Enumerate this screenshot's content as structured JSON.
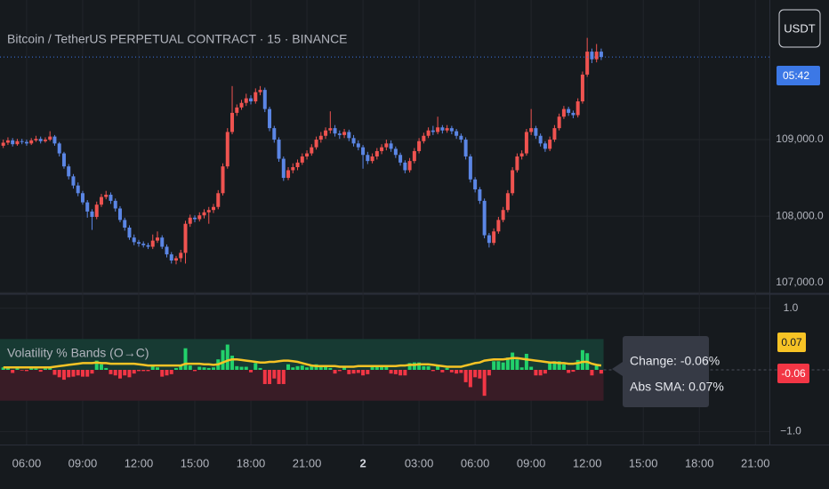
{
  "ui": {
    "currency_button": "USDT"
  },
  "chart_data": [
    {
      "type": "candlestick",
      "title": "Bitcoin / TetherUS PERPETUAL CONTRACT · 15 · BINANCE",
      "open": [
        108920,
        108960,
        108990,
        108940,
        108980,
        108970,
        108950,
        108990,
        109010,
        108980,
        109000,
        109040,
        108950,
        108820,
        108650,
        108520,
        108400,
        108300,
        108180,
        108060,
        107990,
        108150,
        108250,
        108280,
        108200,
        108100,
        107950,
        107850,
        107720,
        107660,
        107640,
        107620,
        107600,
        107680,
        107720,
        107600,
        107500,
        107420,
        107450,
        107520,
        107900,
        107980,
        107960,
        108010,
        108050,
        108080,
        108120,
        108300,
        108650,
        109100,
        109350,
        109420,
        109480,
        109540,
        109500,
        109620,
        109650,
        109400,
        109150,
        109000,
        108750,
        108500,
        108600,
        108640,
        108700,
        108780,
        108820,
        108900,
        109000,
        109050,
        109120,
        109150,
        109080,
        109060,
        109100,
        109020,
        108950,
        108900,
        108800,
        108720,
        108780,
        108850,
        108900,
        108950,
        108880,
        108800,
        108700,
        108600,
        108720,
        108850,
        108980,
        109050,
        109120,
        109100,
        109160,
        109120,
        109150,
        109110,
        109050,
        109000,
        108780,
        108480,
        108350,
        108200,
        107750,
        107650,
        107800,
        107950,
        108080,
        108300,
        108600,
        108780,
        108820,
        109100,
        109150,
        109050,
        108950,
        108880,
        109000,
        109150,
        109300,
        109400,
        109350,
        109320,
        109500,
        109850,
        110150,
        110050,
        110150
      ],
      "high": [
        109000,
        109030,
        109020,
        109010,
        109010,
        109000,
        109020,
        109050,
        109040,
        109030,
        109110,
        109060,
        108970,
        108840,
        108680,
        108550,
        108440,
        108330,
        108210,
        108090,
        108190,
        108290,
        108330,
        108310,
        108230,
        108130,
        107980,
        107880,
        107760,
        107690,
        107670,
        107650,
        107760,
        107800,
        107750,
        107630,
        107530,
        107480,
        107560,
        107940,
        108020,
        108010,
        108050,
        108090,
        108120,
        108160,
        108340,
        108690,
        109150,
        109700,
        109460,
        109520,
        109600,
        109580,
        109670,
        109700,
        109680,
        109430,
        109180,
        109030,
        108780,
        108640,
        108690,
        108740,
        108820,
        108860,
        108940,
        109040,
        109100,
        109160,
        109370,
        109190,
        109120,
        109140,
        109130,
        109060,
        108990,
        108930,
        108840,
        108820,
        108890,
        108940,
        109000,
        108990,
        108910,
        108830,
        108730,
        108760,
        108890,
        109020,
        109090,
        109160,
        109180,
        109300,
        109190,
        109190,
        109180,
        109140,
        109080,
        109030,
        108810,
        108510,
        108380,
        108230,
        107780,
        107840,
        107990,
        108120,
        108340,
        108640,
        108820,
        108860,
        109140,
        109400,
        109180,
        109080,
        108980,
        109040,
        109190,
        109340,
        109440,
        109430,
        109380,
        109540,
        109890,
        110330,
        110190,
        110250,
        110190
      ],
      "low": [
        108890,
        108930,
        108910,
        108920,
        108940,
        108920,
        108930,
        108970,
        108950,
        108960,
        108980,
        108920,
        108780,
        108620,
        108480,
        108360,
        108260,
        108150,
        107980,
        107820,
        107960,
        108120,
        108220,
        108160,
        108060,
        107920,
        107810,
        107690,
        107620,
        107600,
        107590,
        107570,
        107570,
        107650,
        107570,
        107460,
        107380,
        107370,
        107400,
        107380,
        107860,
        107920,
        107930,
        107970,
        107900,
        108040,
        108090,
        108270,
        108620,
        109070,
        109310,
        109390,
        109440,
        109460,
        109470,
        109580,
        109360,
        109110,
        108960,
        108710,
        108460,
        108470,
        108560,
        108600,
        108670,
        108740,
        108790,
        108870,
        108960,
        109010,
        109080,
        109040,
        109010,
        109020,
        108980,
        108910,
        108860,
        108620,
        108680,
        108690,
        108740,
        108810,
        108860,
        108840,
        108760,
        108660,
        108560,
        108570,
        108690,
        108820,
        108950,
        109020,
        109060,
        109070,
        109080,
        109090,
        109070,
        109010,
        108960,
        108740,
        108440,
        108310,
        108160,
        107710,
        107590,
        107620,
        107770,
        107920,
        108050,
        108270,
        108570,
        108740,
        108790,
        109060,
        109010,
        108910,
        108840,
        108850,
        108970,
        109120,
        109270,
        109310,
        109280,
        109290,
        109470,
        109820,
        110000,
        110010,
        110040
      ],
      "close": [
        108960,
        108990,
        108940,
        108980,
        108970,
        108950,
        108990,
        109010,
        108980,
        109000,
        109040,
        108950,
        108820,
        108650,
        108520,
        108400,
        108300,
        108180,
        108060,
        107990,
        108150,
        108250,
        108280,
        108200,
        108100,
        107950,
        107850,
        107720,
        107660,
        107640,
        107620,
        107600,
        107680,
        107720,
        107600,
        107500,
        107420,
        107450,
        107520,
        107900,
        107980,
        107960,
        108010,
        108050,
        108080,
        108120,
        108300,
        108650,
        109100,
        109350,
        109420,
        109480,
        109540,
        109500,
        109620,
        109650,
        109400,
        109150,
        109000,
        108750,
        108500,
        108600,
        108640,
        108700,
        108780,
        108820,
        108900,
        109000,
        109050,
        109120,
        109150,
        109080,
        109060,
        109100,
        109020,
        108950,
        108900,
        108800,
        108720,
        108780,
        108850,
        108900,
        108950,
        108880,
        108800,
        108700,
        108600,
        108720,
        108850,
        108980,
        109050,
        109120,
        109100,
        109160,
        109120,
        109150,
        109110,
        109050,
        109000,
        108780,
        108480,
        108350,
        108200,
        107750,
        107650,
        107800,
        107950,
        108080,
        108300,
        108600,
        108780,
        108820,
        109100,
        109150,
        109050,
        108950,
        108880,
        109000,
        109150,
        109300,
        109400,
        109350,
        109320,
        109500,
        109850,
        110150,
        110050,
        110150,
        110080
      ],
      "colors": {
        "up": "#ef5350",
        "down": "#5b86e5"
      },
      "xlim": [
        -0.7,
        164
      ],
      "xticks": [
        {
          "value": 5,
          "label": "06:00"
        },
        {
          "value": 17,
          "label": "09:00"
        },
        {
          "value": 29,
          "label": "12:00"
        },
        {
          "value": 41,
          "label": "15:00"
        },
        {
          "value": 53,
          "label": "18:00"
        },
        {
          "value": 65,
          "label": "21:00"
        },
        {
          "value": 77,
          "label": "2"
        },
        {
          "value": 89,
          "label": "03:00"
        },
        {
          "value": 101,
          "label": "06:00"
        },
        {
          "value": 113,
          "label": "09:00"
        },
        {
          "value": 125,
          "label": "12:00"
        },
        {
          "value": 137,
          "label": "15:00"
        },
        {
          "value": 149,
          "label": "18:00"
        },
        {
          "value": 161,
          "label": "21:00"
        }
      ],
      "ylim": [
        106990,
        110825
      ],
      "yticks": [
        {
          "value": 107000,
          "label": "107,000.0"
        },
        {
          "value": 108000,
          "label": "108,000.0"
        },
        {
          "value": 109000,
          "label": "109,000.0"
        }
      ],
      "grid": true,
      "last_price": 110080,
      "countdown": "05:42"
    },
    {
      "type": "bar",
      "title": "Volatility % Bands (O→C)",
      "values": [
        0.04,
        0.03,
        -0.05,
        0.04,
        -0.01,
        -0.02,
        0.04,
        0.02,
        -0.03,
        0.02,
        0.04,
        -0.08,
        -0.12,
        -0.16,
        -0.12,
        -0.11,
        -0.09,
        -0.11,
        -0.11,
        -0.06,
        0.15,
        0.09,
        0.03,
        -0.07,
        -0.09,
        -0.14,
        -0.09,
        -0.12,
        -0.06,
        -0.02,
        -0.02,
        -0.02,
        0.07,
        0.04,
        -0.11,
        -0.09,
        -0.07,
        0.03,
        0.07,
        0.35,
        0.07,
        -0.02,
        0.05,
        0.04,
        0.03,
        0.04,
        0.17,
        0.32,
        0.41,
        0.23,
        0.06,
        0.05,
        0.05,
        -0.04,
        0.11,
        0.03,
        -0.23,
        -0.23,
        -0.14,
        -0.23,
        -0.23,
        0.09,
        0.04,
        0.06,
        0.07,
        0.04,
        0.07,
        0.09,
        0.05,
        0.06,
        0.03,
        -0.06,
        -0.02,
        0.04,
        -0.07,
        -0.06,
        -0.05,
        -0.09,
        -0.07,
        0.06,
        0.06,
        0.05,
        0.05,
        -0.06,
        -0.07,
        -0.09,
        -0.09,
        0.11,
        0.12,
        0.12,
        0.06,
        0.06,
        -0.02,
        0.06,
        -0.04,
        0.03,
        -0.04,
        -0.06,
        -0.05,
        -0.2,
        -0.28,
        -0.12,
        -0.14,
        -0.42,
        -0.09,
        0.14,
        0.14,
        0.12,
        0.2,
        0.28,
        0.17,
        0.04,
        0.26,
        0.05,
        -0.09,
        -0.09,
        -0.06,
        0.11,
        0.14,
        0.14,
        0.09,
        -0.05,
        -0.03,
        0.16,
        0.32,
        0.27,
        -0.09,
        0.09,
        -0.06
      ],
      "colors": {
        "positive": "#22d16b",
        "negative": "#f23645"
      },
      "sma": {
        "color": "#f7c325",
        "values": [
          0.04,
          0.04,
          0.04,
          0.04,
          0.04,
          0.04,
          0.04,
          0.04,
          0.04,
          0.04,
          0.04,
          0.05,
          0.06,
          0.07,
          0.08,
          0.09,
          0.1,
          0.11,
          0.11,
          0.11,
          0.12,
          0.11,
          0.11,
          0.1,
          0.1,
          0.1,
          0.1,
          0.1,
          0.1,
          0.09,
          0.08,
          0.07,
          0.07,
          0.07,
          0.07,
          0.07,
          0.07,
          0.07,
          0.07,
          0.1,
          0.1,
          0.1,
          0.1,
          0.09,
          0.09,
          0.08,
          0.09,
          0.12,
          0.15,
          0.17,
          0.17,
          0.16,
          0.15,
          0.14,
          0.13,
          0.12,
          0.12,
          0.13,
          0.13,
          0.14,
          0.15,
          0.15,
          0.14,
          0.13,
          0.11,
          0.09,
          0.07,
          0.06,
          0.06,
          0.06,
          0.06,
          0.06,
          0.05,
          0.05,
          0.05,
          0.05,
          0.06,
          0.06,
          0.06,
          0.06,
          0.06,
          0.06,
          0.06,
          0.06,
          0.06,
          0.07,
          0.07,
          0.08,
          0.08,
          0.09,
          0.09,
          0.09,
          0.08,
          0.07,
          0.06,
          0.05,
          0.05,
          0.05,
          0.05,
          0.07,
          0.09,
          0.11,
          0.12,
          0.15,
          0.16,
          0.17,
          0.17,
          0.17,
          0.18,
          0.19,
          0.19,
          0.18,
          0.17,
          0.16,
          0.15,
          0.14,
          0.13,
          0.12,
          0.12,
          0.11,
          0.11,
          0.1,
          0.1,
          0.11,
          0.13,
          0.13,
          0.1,
          0.08,
          0.07
        ]
      },
      "bands": [
        -0.5,
        0.5
      ],
      "ylim": [
        -1.21,
        1.21
      ],
      "yticks": [
        {
          "value": 1,
          "label": "1.0"
        },
        {
          "value": -1,
          "label": "−1.0"
        }
      ],
      "tooltip": [
        "Change: -0.06%",
        "Abs SMA: 0.07%"
      ],
      "last_labels": [
        "0.07",
        "-0.06"
      ]
    }
  ]
}
